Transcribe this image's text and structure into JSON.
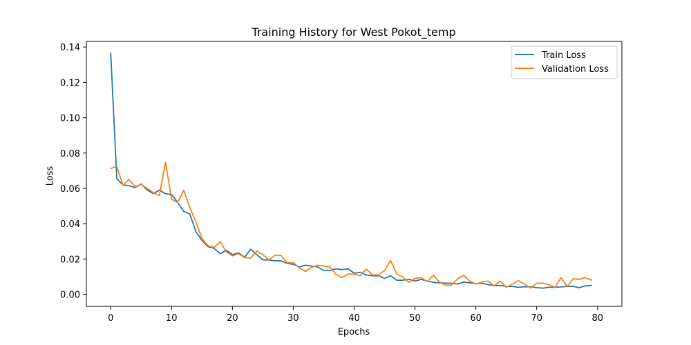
{
  "chart_data": {
    "type": "line",
    "title": "Training History for West Pokot_temp",
    "xlabel": "Epochs",
    "ylabel": "Loss",
    "xlim": [
      -4,
      84
    ],
    "ylim": [
      -0.0068,
      0.1432
    ],
    "xticks": [
      0,
      10,
      20,
      30,
      40,
      50,
      60,
      70,
      80
    ],
    "xtick_labels": [
      "0",
      "10",
      "20",
      "30",
      "40",
      "50",
      "60",
      "70",
      "80"
    ],
    "yticks": [
      0.0,
      0.02,
      0.04,
      0.06,
      0.08,
      0.1,
      0.12,
      0.14
    ],
    "ytick_labels": [
      "0.00",
      "0.02",
      "0.04",
      "0.06",
      "0.08",
      "0.10",
      "0.12",
      "0.14"
    ],
    "grid": false,
    "legend_position": "top-right",
    "x": [
      0,
      1,
      2,
      3,
      4,
      5,
      6,
      7,
      8,
      9,
      10,
      11,
      12,
      13,
      14,
      15,
      16,
      17,
      18,
      19,
      20,
      21,
      22,
      23,
      24,
      25,
      26,
      27,
      28,
      29,
      30,
      31,
      32,
      33,
      34,
      35,
      36,
      37,
      38,
      39,
      40,
      41,
      42,
      43,
      44,
      45,
      46,
      47,
      48,
      49,
      50,
      51,
      52,
      53,
      54,
      55,
      56,
      57,
      58,
      59,
      60,
      61,
      62,
      63,
      64,
      65,
      66,
      67,
      68,
      69,
      70,
      71,
      72,
      73,
      74,
      75,
      76,
      77,
      78,
      79
    ],
    "series": [
      {
        "name": "Train Loss",
        "color": "#1f77b4",
        "values": [
          0.1365,
          0.0655,
          0.062,
          0.0615,
          0.0605,
          0.0625,
          0.059,
          0.057,
          0.059,
          0.057,
          0.0565,
          0.052,
          0.047,
          0.0455,
          0.0355,
          0.0305,
          0.027,
          0.026,
          0.023,
          0.025,
          0.0225,
          0.0235,
          0.021,
          0.0255,
          0.0225,
          0.0195,
          0.0195,
          0.019,
          0.019,
          0.0175,
          0.017,
          0.0155,
          0.0165,
          0.016,
          0.0155,
          0.0135,
          0.0135,
          0.0145,
          0.014,
          0.0145,
          0.012,
          0.0125,
          0.011,
          0.0105,
          0.0105,
          0.009,
          0.0105,
          0.008,
          0.008,
          0.0085,
          0.0075,
          0.0085,
          0.0075,
          0.0068,
          0.0065,
          0.0063,
          0.0063,
          0.0058,
          0.007,
          0.0065,
          0.006,
          0.0063,
          0.0055,
          0.005,
          0.005,
          0.0045,
          0.0045,
          0.004,
          0.0043,
          0.0043,
          0.0038,
          0.0035,
          0.004,
          0.004,
          0.0042,
          0.0045,
          0.0045,
          0.0038,
          0.0048,
          0.005
        ]
      },
      {
        "name": "Validation Loss",
        "color": "#ff7f0e",
        "values": [
          0.0712,
          0.0725,
          0.0618,
          0.065,
          0.061,
          0.0622,
          0.06,
          0.0575,
          0.056,
          0.0748,
          0.0538,
          0.052,
          0.059,
          0.049,
          0.041,
          0.0315,
          0.0275,
          0.0265,
          0.0298,
          0.024,
          0.0218,
          0.023,
          0.0208,
          0.0205,
          0.0245,
          0.0225,
          0.0195,
          0.0222,
          0.022,
          0.0178,
          0.018,
          0.015,
          0.013,
          0.0152,
          0.0165,
          0.016,
          0.0155,
          0.0115,
          0.0095,
          0.0115,
          0.0115,
          0.0105,
          0.0143,
          0.011,
          0.011,
          0.0135,
          0.0192,
          0.0115,
          0.0098,
          0.0068,
          0.009,
          0.0095,
          0.0072,
          0.0108,
          0.007,
          0.0052,
          0.0052,
          0.0088,
          0.0108,
          0.0075,
          0.0058,
          0.007,
          0.0075,
          0.0048,
          0.0075,
          0.004,
          0.0058,
          0.0078,
          0.0058,
          0.0035,
          0.0063,
          0.0063,
          0.0055,
          0.004,
          0.0095,
          0.0045,
          0.0088,
          0.0085,
          0.0095,
          0.008
        ]
      }
    ]
  }
}
